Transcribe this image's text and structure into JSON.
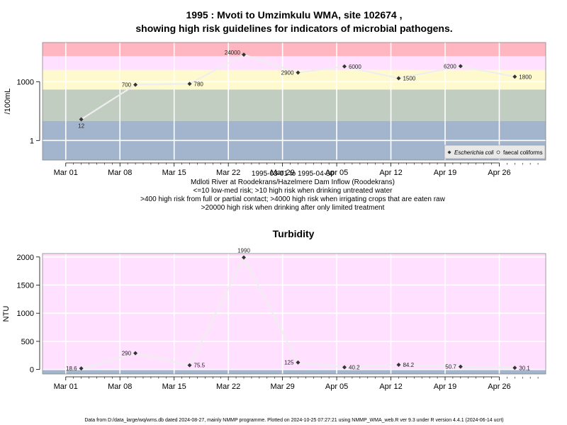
{
  "chart_data": [
    {
      "type": "line",
      "title": "1995 : Mvoti to Umzimkulu WMA, site 102674 ,",
      "subtitle": "showing high risk guidelines for indicators of microbial pathogens.",
      "ylabel": "/100mL",
      "y_scale": "log",
      "ylim": [
        0.1,
        100000
      ],
      "yticks": [
        {
          "value": 1,
          "label": "1"
        },
        {
          "value": 1000,
          "label": "1000"
        }
      ],
      "xlim": [
        "1995-02-26",
        "1995-05-02"
      ],
      "xticks": [
        {
          "date": "1995-03-01",
          "label": "Mar 01"
        },
        {
          "date": "1995-03-08",
          "label": "Mar 08"
        },
        {
          "date": "1995-03-15",
          "label": "Mar 15"
        },
        {
          "date": "1995-03-22",
          "label": "Mar 22"
        },
        {
          "date": "1995-03-29",
          "label": "Mar 29"
        },
        {
          "date": "1995-04-05",
          "label": "Apr 05"
        },
        {
          "date": "1995-04-12",
          "label": "Apr 12"
        },
        {
          "date": "1995-04-19",
          "label": "Apr 19"
        },
        {
          "date": "1995-04-26",
          "label": "Apr 26"
        }
      ],
      "bands": [
        {
          "from": 0.1,
          "to": 10,
          "color": "#a2b5cd"
        },
        {
          "from": 10,
          "to": 400,
          "color": "#c1cdc1"
        },
        {
          "from": 400,
          "to": 4000,
          "color": "#fffacd"
        },
        {
          "from": 4000,
          "to": 20000,
          "color": "#ffe1ff"
        },
        {
          "from": 20000,
          "to": 100000,
          "color": "#ffb6c1"
        }
      ],
      "grid": true,
      "legend_position": "bottom-right",
      "series": [
        {
          "name": "Escherichia coli",
          "marker": "filled-diamond",
          "points": [
            {
              "date": "1995-03-03",
              "value": 12,
              "label": "12"
            },
            {
              "date": "1995-03-10",
              "value": 700,
              "label": "700"
            },
            {
              "date": "1995-03-17",
              "value": 780,
              "label": "780"
            },
            {
              "date": "1995-03-24",
              "value": 24000,
              "label": "24000"
            },
            {
              "date": "1995-03-31",
              "value": 2900,
              "label": "2900"
            },
            {
              "date": "1995-04-06",
              "value": 6000,
              "label": "6000"
            },
            {
              "date": "1995-04-13",
              "value": 1500,
              "label": "1500"
            },
            {
              "date": "1995-04-21",
              "value": 6200,
              "label": "6200"
            },
            {
              "date": "1995-04-28",
              "value": 1800,
              "label": "1800"
            }
          ]
        },
        {
          "name": "faecal coliforms",
          "marker": "open-circle",
          "points": []
        }
      ],
      "notes": [
        "1995-03-01 to 1995-04-30",
        "Mdloti River at Roodekrans/Hazelmere Dam Inflow (Roodekrans)",
        "<=10 low-med risk; >10 high risk when drinking untreated water",
        ">400 high risk from full or partial contact; >4000 high risk when irrigating crops that are eaten raw",
        ">20000 high risk when drinking after only limited treatment"
      ]
    },
    {
      "type": "line",
      "title": "Turbidity",
      "ylabel": "NTU",
      "ylim": [
        -80,
        2060
      ],
      "yticks": [
        {
          "value": 0,
          "label": "0"
        },
        {
          "value": 500,
          "label": "500"
        },
        {
          "value": 1000,
          "label": "1000"
        },
        {
          "value": 1500,
          "label": "1500"
        },
        {
          "value": 2000,
          "label": "2000"
        }
      ],
      "xlim": [
        "1995-02-26",
        "1995-05-02"
      ],
      "xticks": [
        {
          "date": "1995-03-01",
          "label": "Mar 01"
        },
        {
          "date": "1995-03-08",
          "label": "Mar 08"
        },
        {
          "date": "1995-03-15",
          "label": "Mar 15"
        },
        {
          "date": "1995-03-22",
          "label": "Mar 22"
        },
        {
          "date": "1995-03-29",
          "label": "Mar 29"
        },
        {
          "date": "1995-04-05",
          "label": "Apr 05"
        },
        {
          "date": "1995-04-12",
          "label": "Apr 12"
        },
        {
          "date": "1995-04-19",
          "label": "Apr 19"
        },
        {
          "date": "1995-04-26",
          "label": "Apr 26"
        }
      ],
      "bands": [
        {
          "from": -80,
          "to": 0,
          "color": "#a2b5cd"
        },
        {
          "from": 0,
          "to": 2060,
          "color": "#ffe1ff"
        }
      ],
      "grid": true,
      "series": [
        {
          "marker": "filled-diamond",
          "points": [
            {
              "date": "1995-03-03",
              "value": 18.6,
              "label": "18.6"
            },
            {
              "date": "1995-03-10",
              "value": 290,
              "label": "290"
            },
            {
              "date": "1995-03-17",
              "value": 75.5,
              "label": "75.5"
            },
            {
              "date": "1995-03-24",
              "value": 1990,
              "label": "1990"
            },
            {
              "date": "1995-03-31",
              "value": 125,
              "label": "125"
            },
            {
              "date": "1995-04-06",
              "value": 40.2,
              "label": "40.2"
            },
            {
              "date": "1995-04-13",
              "value": 84.2,
              "label": "84.2"
            },
            {
              "date": "1995-04-21",
              "value": 50.7,
              "label": "50.7"
            },
            {
              "date": "1995-04-28",
              "value": 30.1,
              "label": "30.1"
            }
          ]
        }
      ]
    }
  ],
  "footer": "Data from D:/data_large/wq/wms.db dated 2024-08-27, mainly NMMP programme. Plotted on 2024-10-25 07:27:21 using NMMP_WMA_web.R ver 9.3 under R version 4.4.1 (2024-06-14 ucrt)"
}
